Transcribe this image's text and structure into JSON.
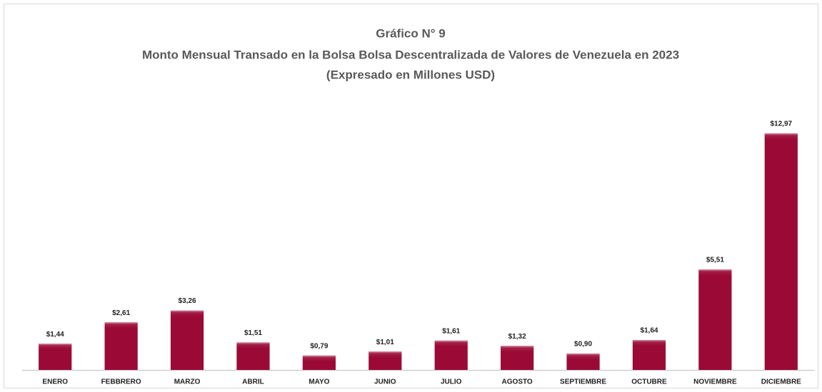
{
  "chart_data": {
    "type": "bar",
    "title": [
      "Gráfico N° 9",
      "Monto Mensual Transado en la Bolsa Bolsa Descentralizada de Valores de Venezuela en 2023",
      "(Expresado en Millones USD)"
    ],
    "categories": [
      "ENERO",
      "FEBBRERO",
      "MARZO",
      "ABRIL",
      "MAYO",
      "JUNIO",
      "JULIO",
      "AGOSTO",
      "SEPTIEMBRE",
      "OCTUBRE",
      "NOVIEMBRE",
      "DICIEMBRE"
    ],
    "values": [
      1.44,
      2.61,
      3.26,
      1.51,
      0.79,
      1.01,
      1.61,
      1.32,
      0.9,
      1.64,
      5.51,
      12.97
    ],
    "value_labels": [
      "$1,44",
      "$2,61",
      "$3,26",
      "$1,51",
      "$0,79",
      "$1,01",
      "$1,61",
      "$1,32",
      "$0,90",
      "$1,64",
      "$5,51",
      "$12,97"
    ],
    "color": "#9b0a36"
  }
}
